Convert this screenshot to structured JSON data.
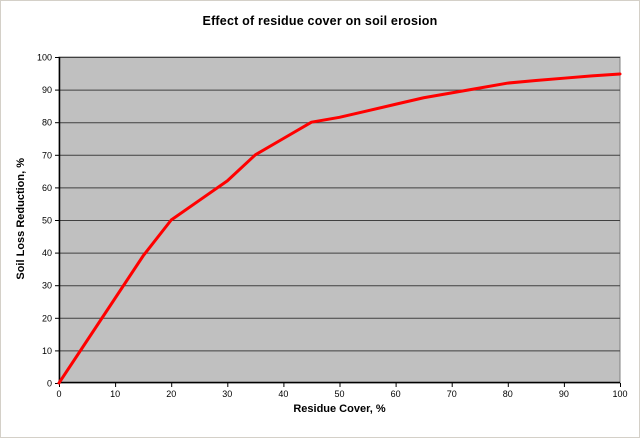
{
  "title": "Effect of residue cover on soil erosion",
  "chart_data": {
    "type": "line",
    "title": "Effect of residue cover on soil erosion",
    "xlabel": "Residue Cover, %",
    "ylabel": "Soil Loss Reduction, %",
    "xlim": [
      0,
      100
    ],
    "ylim": [
      0,
      100
    ],
    "x_ticks": [
      0,
      10,
      20,
      30,
      40,
      50,
      60,
      70,
      80,
      90,
      100
    ],
    "y_ticks": [
      0,
      10,
      20,
      30,
      40,
      50,
      60,
      70,
      80,
      90,
      100
    ],
    "grid": "horizontal",
    "legend": "none",
    "x": [
      0,
      5,
      10,
      15,
      20,
      25,
      30,
      35,
      40,
      45,
      50,
      55,
      60,
      65,
      70,
      75,
      80,
      85,
      90,
      95,
      100
    ],
    "series": [
      {
        "name": "Soil loss reduction",
        "values": [
          0,
          13,
          26,
          39,
          50,
          56,
          62,
          70,
          75,
          80,
          81.5,
          83.5,
          85.5,
          87.5,
          89,
          90.5,
          92,
          92.8,
          93.5,
          94.2,
          94.8
        ],
        "color": "#ff0000"
      }
    ],
    "colors": {
      "plot_background": "#c0c0c0",
      "gridline": "#404040",
      "plot_border": "#808080",
      "axis": "#000000",
      "line": "#ff0000",
      "text": "#000000"
    }
  }
}
